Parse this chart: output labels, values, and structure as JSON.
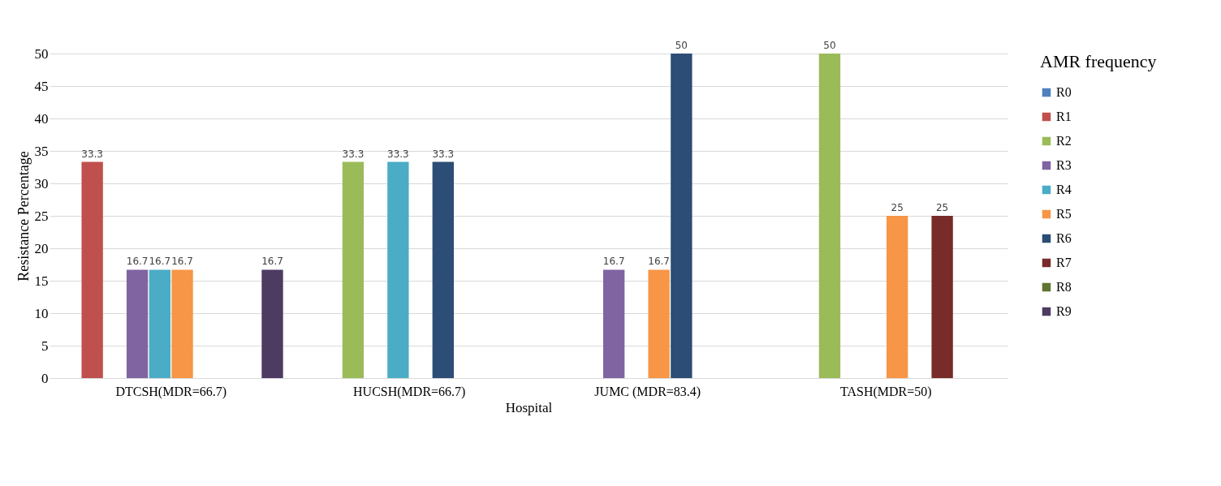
{
  "chart_data": {
    "type": "bar",
    "xlabel": "Hospital",
    "ylabel": "Resistance Percentage",
    "legend_title": "AMR frequency",
    "categories": [
      "DTCSH(MDR=66.7)",
      "HUCSH(MDR=66.7)",
      "JUMC (MDR=83.4)",
      "TASH(MDR=50)"
    ],
    "series": [
      {
        "name": "R0",
        "color": "#4f81bd",
        "values": [
          null,
          null,
          null,
          null
        ]
      },
      {
        "name": "R1",
        "color": "#c0504d",
        "values": [
          33.3,
          null,
          null,
          null
        ]
      },
      {
        "name": "R2",
        "color": "#9bbb59",
        "values": [
          null,
          33.3,
          null,
          50
        ]
      },
      {
        "name": "R3",
        "color": "#8064a2",
        "values": [
          16.7,
          null,
          16.7,
          null
        ]
      },
      {
        "name": "R4",
        "color": "#4bacc6",
        "values": [
          16.7,
          33.3,
          null,
          null
        ]
      },
      {
        "name": "R5",
        "color": "#f79646",
        "values": [
          16.7,
          null,
          16.7,
          25
        ]
      },
      {
        "name": "R6",
        "color": "#2c4d75",
        "values": [
          null,
          33.3,
          50,
          null
        ]
      },
      {
        "name": "R7",
        "color": "#772c2a",
        "values": [
          null,
          null,
          null,
          25
        ]
      },
      {
        "name": "R8",
        "color": "#5f7530",
        "values": [
          null,
          null,
          null,
          null
        ]
      },
      {
        "name": "R9",
        "color": "#4d3b62",
        "values": [
          16.7,
          null,
          null,
          null
        ]
      }
    ],
    "ylim": [
      0,
      50
    ],
    "yticks": [
      0,
      5,
      10,
      15,
      20,
      25,
      30,
      35,
      40,
      45,
      50
    ],
    "grid": "y",
    "legend": "right",
    "data_labels": true
  }
}
